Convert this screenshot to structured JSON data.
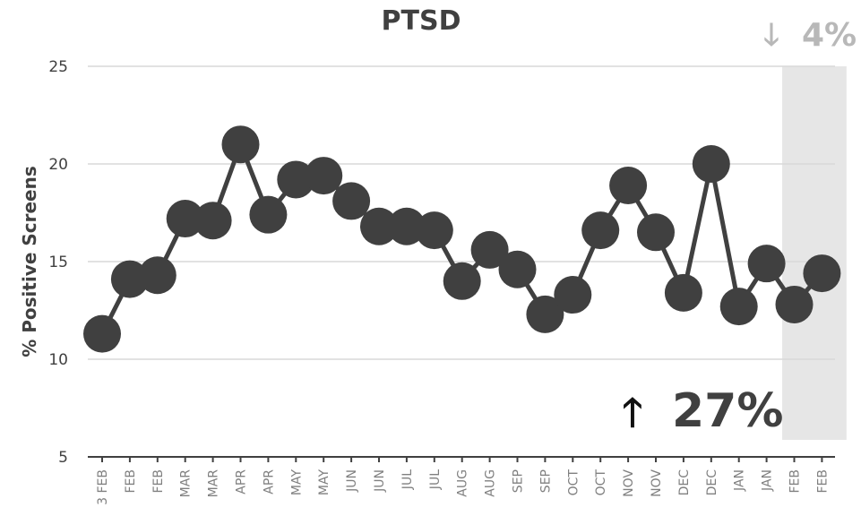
{
  "chart_data": {
    "type": "line",
    "title": "PTSD",
    "xlabel": "",
    "ylabel": "% Positive Screens",
    "ylim": [
      5,
      25
    ],
    "yticks": [
      5,
      10,
      15,
      20,
      25
    ],
    "grid": true,
    "legend": "none",
    "categories": [
      "3 FEB",
      "FEB",
      "FEB",
      "MAR",
      "MAR",
      "APR",
      "APR",
      "MAY",
      "MAY",
      "JUN",
      "JUN",
      "JUL",
      "JUL",
      "AUG",
      "AUG",
      "SEP",
      "SEP",
      "OCT",
      "OCT",
      "NOV",
      "NOV",
      "DEC",
      "DEC",
      "JAN",
      "JAN",
      "FEB",
      "FEB"
    ],
    "series": [
      {
        "values": [
          11.3,
          14.1,
          14.3,
          17.2,
          17.1,
          21.0,
          17.4,
          19.2,
          19.4,
          18.1,
          16.8,
          16.8,
          16.6,
          14.0,
          15.6,
          14.6,
          12.3,
          13.3,
          16.6,
          18.9,
          16.5,
          13.4,
          20.0,
          12.7,
          14.9,
          12.8,
          14.4
        ]
      }
    ],
    "highlight_region": {
      "from_index": 25,
      "to_index": 26,
      "color": "#e6e6e6"
    },
    "annotations": {
      "main_arrow": "🡑",
      "main_change": "27%",
      "recent_arrow": "🡓",
      "recent_change": "4%"
    },
    "colors": {
      "series": "#404040",
      "grid": "#d9d9d9",
      "axis": "#404040",
      "highlight": "#e6e6e6"
    }
  }
}
